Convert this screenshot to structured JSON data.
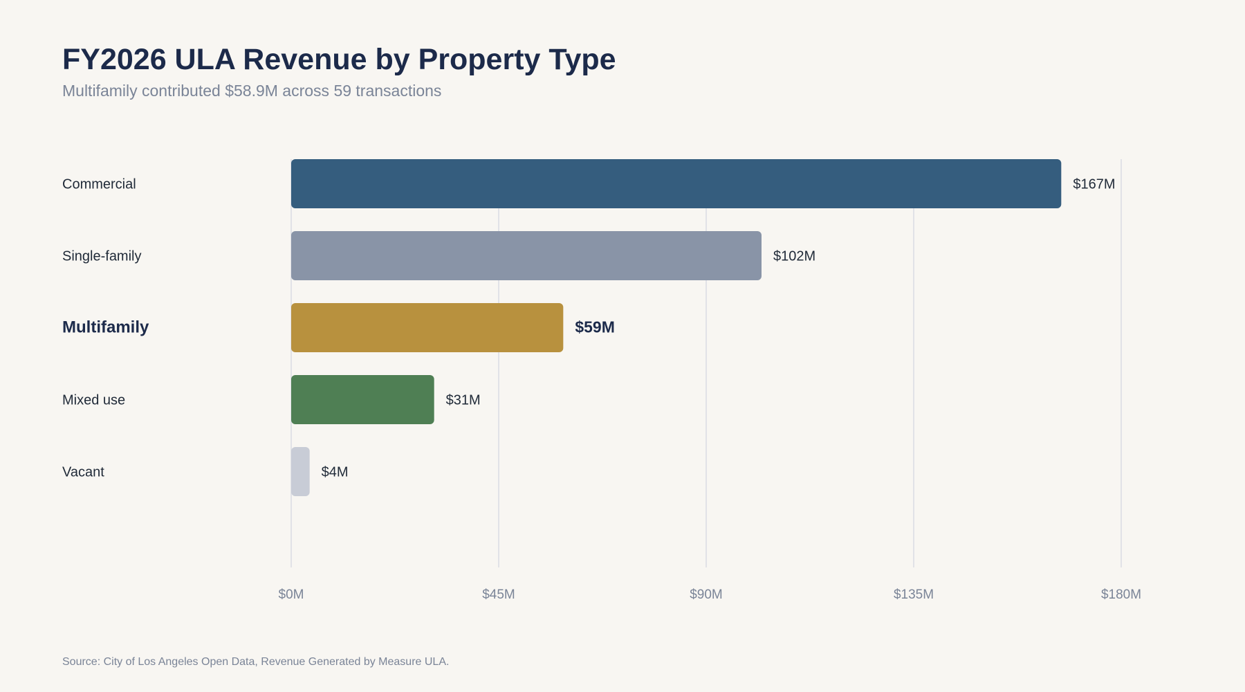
{
  "header": {
    "title": "FY2026 ULA Revenue by Property Type",
    "subtitle": "Multifamily contributed $58.9M across 59 transactions"
  },
  "footer": {
    "source": "Source: City of Los Angeles Open Data, Revenue Generated by Measure ULA."
  },
  "chart_data": {
    "type": "bar",
    "orientation": "horizontal",
    "title": "FY2026 ULA Revenue by Property Type",
    "subtitle": "Multifamily contributed $58.9M across 59 transactions",
    "categories": [
      "Commercial",
      "Single-family",
      "Multifamily",
      "Mixed use",
      "Vacant"
    ],
    "values": [
      167,
      102,
      59,
      31,
      4
    ],
    "value_labels": [
      "$167M",
      "$102M",
      "$59M",
      "$31M",
      "$4M"
    ],
    "colors": [
      "#355d7e",
      "#8994a7",
      "#b8913e",
      "#4f7f54",
      "#c8ccd6"
    ],
    "highlight": "Multifamily",
    "unit": "$M",
    "xlim": [
      0,
      180
    ],
    "x_ticks": [
      0,
      45,
      90,
      135,
      180
    ],
    "x_tick_labels": [
      "$0M",
      "$45M",
      "$90M",
      "$135M",
      "$180M"
    ],
    "xlabel": "",
    "ylabel": "",
    "grid": "vertical",
    "legend": "none"
  }
}
